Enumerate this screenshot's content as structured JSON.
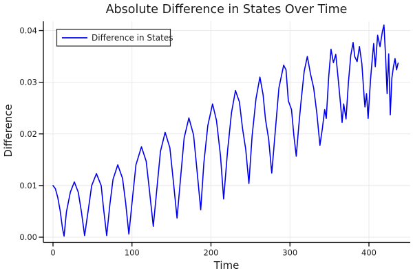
{
  "page": {
    "title": "Absolute Difference in States Over Time"
  },
  "colors": {
    "line": "#0000ee",
    "grid": "#e8e8e8",
    "axis": "#000000",
    "background": "#ffffff",
    "legend_border": "#2b2b2b"
  },
  "chart_data": {
    "type": "line",
    "title": "Absolute Difference in States Over Time",
    "xlabel": "Time",
    "ylabel": "Difference",
    "grid": true,
    "legend": {
      "position": "top-left",
      "label": "Difference in States"
    },
    "xlim": [
      -12.2,
      452.3
    ],
    "ylim": [
      -0.001,
      0.0418
    ],
    "x_ticks": [
      0,
      100,
      200,
      300,
      400
    ],
    "x_tick_labels": [
      "0",
      "100",
      "200",
      "300",
      "400"
    ],
    "y_ticks": [
      0,
      0.01,
      0.02,
      0.03,
      0.04
    ],
    "y_tick_labels": [
      "0.00",
      "0.01",
      "0.02",
      "0.03",
      "0.04"
    ],
    "series": [
      {
        "name": "Difference in States",
        "color": "#0000ee",
        "points": [
          [
            0,
            0.01
          ],
          [
            3,
            0.0094
          ],
          [
            6,
            0.0077
          ],
          [
            9,
            0.0052
          ],
          [
            12,
            0.0017
          ],
          [
            14,
            0.0002
          ],
          [
            17,
            0.0049
          ],
          [
            22,
            0.0087
          ],
          [
            27,
            0.0107
          ],
          [
            32,
            0.0087
          ],
          [
            36,
            0.0049
          ],
          [
            40,
            0.0003
          ],
          [
            45,
            0.0056
          ],
          [
            49,
            0.01
          ],
          [
            55,
            0.0123
          ],
          [
            61,
            0.01
          ],
          [
            64,
            0.0056
          ],
          [
            68,
            0.0003
          ],
          [
            72,
            0.0063
          ],
          [
            76,
            0.0112
          ],
          [
            82,
            0.014
          ],
          [
            88,
            0.0114
          ],
          [
            92,
            0.0066
          ],
          [
            96,
            0.0006
          ],
          [
            101,
            0.0081
          ],
          [
            105,
            0.014
          ],
          [
            112,
            0.0175
          ],
          [
            118,
            0.0147
          ],
          [
            122,
            0.0092
          ],
          [
            127,
            0.0021
          ],
          [
            132,
            0.0102
          ],
          [
            136,
            0.0166
          ],
          [
            142,
            0.0203
          ],
          [
            148,
            0.0173
          ],
          [
            152,
            0.0114
          ],
          [
            157,
            0.0037
          ],
          [
            162,
            0.0123
          ],
          [
            166,
            0.0192
          ],
          [
            172,
            0.0231
          ],
          [
            178,
            0.0198
          ],
          [
            182,
            0.0135
          ],
          [
            187,
            0.0053
          ],
          [
            191,
            0.0144
          ],
          [
            196,
            0.0216
          ],
          [
            202,
            0.0258
          ],
          [
            207,
            0.0226
          ],
          [
            212,
            0.0158
          ],
          [
            216,
            0.0074
          ],
          [
            221,
            0.0167
          ],
          [
            226,
            0.0241
          ],
          [
            231,
            0.0284
          ],
          [
            236,
            0.0262
          ],
          [
            240,
            0.021
          ],
          [
            244,
            0.017
          ],
          [
            248,
            0.0104
          ],
          [
            252,
            0.0195
          ],
          [
            257,
            0.0268
          ],
          [
            262,
            0.031
          ],
          [
            266,
            0.0276
          ],
          [
            269,
            0.0228
          ],
          [
            273,
            0.019
          ],
          [
            277,
            0.0124
          ],
          [
            282,
            0.0216
          ],
          [
            286,
            0.0289
          ],
          [
            292,
            0.0333
          ],
          [
            295,
            0.0324
          ],
          [
            298,
            0.0264
          ],
          [
            302,
            0.0247
          ],
          [
            305,
            0.0196
          ],
          [
            308,
            0.0157
          ],
          [
            311,
            0.0213
          ],
          [
            314,
            0.0262
          ],
          [
            318,
            0.0321
          ],
          [
            322,
            0.035
          ],
          [
            326,
            0.0316
          ],
          [
            330,
            0.0289
          ],
          [
            334,
            0.024
          ],
          [
            338,
            0.0178
          ],
          [
            341,
            0.021
          ],
          [
            344,
            0.0247
          ],
          [
            346,
            0.023
          ],
          [
            349,
            0.031
          ],
          [
            352,
            0.0364
          ],
          [
            355,
            0.0338
          ],
          [
            358,
            0.0354
          ],
          [
            361,
            0.0308
          ],
          [
            364,
            0.0258
          ],
          [
            366,
            0.0222
          ],
          [
            368,
            0.0258
          ],
          [
            371,
            0.0229
          ],
          [
            374,
            0.03
          ],
          [
            377,
            0.0352
          ],
          [
            380,
            0.0377
          ],
          [
            382,
            0.035
          ],
          [
            385,
            0.034
          ],
          [
            388,
            0.0369
          ],
          [
            391,
            0.0336
          ],
          [
            394,
            0.027
          ],
          [
            395,
            0.0252
          ],
          [
            397,
            0.0278
          ],
          [
            399,
            0.023
          ],
          [
            402,
            0.0305
          ],
          [
            404,
            0.0342
          ],
          [
            406,
            0.0375
          ],
          [
            408,
            0.033
          ],
          [
            411,
            0.0391
          ],
          [
            414,
            0.0369
          ],
          [
            417,
            0.0398
          ],
          [
            419,
            0.0411
          ],
          [
            421,
            0.0352
          ],
          [
            423,
            0.0278
          ],
          [
            425,
            0.0355
          ],
          [
            427,
            0.0237
          ],
          [
            429,
            0.0308
          ],
          [
            431,
            0.033
          ],
          [
            433,
            0.0346
          ],
          [
            435,
            0.0324
          ],
          [
            437,
            0.0337
          ]
        ]
      }
    ]
  }
}
